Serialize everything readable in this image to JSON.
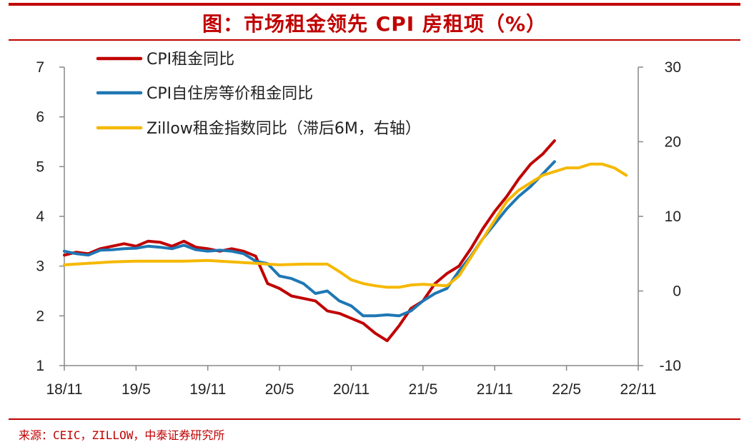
{
  "header": {
    "title": "图：市场租金领先 CPI 房租项（%）"
  },
  "footer": {
    "source": "来源：CEIC，ZILLOW，中泰证券研究所"
  },
  "chart_data": {
    "type": "line",
    "title": "图：市场租金领先 CPI 房租项（%）",
    "legend_position": "top-left",
    "grid": false,
    "x_ticks": [
      "18/11",
      "19/5",
      "19/11",
      "20/5",
      "20/11",
      "21/5",
      "21/11",
      "22/5",
      "22/11"
    ],
    "x_range": [
      0,
      48
    ],
    "left_axis": {
      "ticks": [
        "1",
        "2",
        "3",
        "4",
        "5",
        "6",
        "7"
      ],
      "ylim": [
        1,
        7
      ]
    },
    "right_axis": {
      "ticks": [
        "-10",
        "0",
        "10",
        "20",
        "30"
      ],
      "ylim": [
        -10,
        30
      ]
    },
    "series": [
      {
        "name": "CPI租金同比",
        "axis": "left",
        "color": "#c00000",
        "x": [
          0,
          1,
          2,
          3,
          4,
          5,
          6,
          7,
          8,
          9,
          10,
          11,
          12,
          13,
          14,
          15,
          16,
          17,
          18,
          19,
          20,
          21,
          22,
          23,
          24,
          25,
          26,
          27,
          28,
          29,
          30,
          31,
          32,
          33,
          34,
          35,
          36,
          37,
          38,
          39,
          40,
          41
        ],
        "values": [
          3.22,
          3.28,
          3.25,
          3.35,
          3.4,
          3.45,
          3.4,
          3.5,
          3.48,
          3.4,
          3.5,
          3.38,
          3.35,
          3.3,
          3.35,
          3.3,
          3.2,
          2.65,
          2.55,
          2.4,
          2.35,
          2.3,
          2.1,
          2.05,
          1.95,
          1.85,
          1.65,
          1.5,
          1.8,
          2.15,
          2.3,
          2.65,
          2.85,
          3.0,
          3.35,
          3.75,
          4.1,
          4.4,
          4.75,
          5.05,
          5.25,
          5.52
        ]
      },
      {
        "name": "CPI自住房等价租金同比",
        "axis": "left",
        "color": "#1f77b4",
        "x": [
          0,
          1,
          2,
          3,
          4,
          5,
          6,
          7,
          8,
          9,
          10,
          11,
          12,
          13,
          14,
          15,
          16,
          17,
          18,
          19,
          20,
          21,
          22,
          23,
          24,
          25,
          26,
          27,
          28,
          29,
          30,
          31,
          32,
          33,
          34,
          35,
          36,
          37,
          38,
          39,
          40,
          41
        ],
        "values": [
          3.3,
          3.25,
          3.22,
          3.32,
          3.33,
          3.35,
          3.36,
          3.4,
          3.38,
          3.35,
          3.42,
          3.33,
          3.3,
          3.32,
          3.3,
          3.25,
          3.1,
          3.05,
          2.8,
          2.75,
          2.65,
          2.45,
          2.5,
          2.3,
          2.2,
          2.0,
          2.0,
          2.02,
          2.0,
          2.1,
          2.3,
          2.45,
          2.55,
          2.9,
          3.2,
          3.55,
          3.85,
          4.15,
          4.4,
          4.6,
          4.85,
          5.1
        ]
      },
      {
        "name": "Zillow租金指数同比（滞后6M，右轴）",
        "axis": "right",
        "color": "#f5b800",
        "x": [
          0,
          2,
          4,
          6,
          8,
          10,
          12,
          14,
          16,
          18,
          20,
          22,
          23,
          24,
          25,
          26,
          27,
          28,
          29,
          30,
          31,
          32,
          33,
          34,
          35,
          36,
          37,
          38,
          39,
          40,
          41,
          42,
          43,
          44,
          45,
          46,
          47
        ],
        "values": [
          3.5,
          3.7,
          3.9,
          4.0,
          4.0,
          4.0,
          4.1,
          3.9,
          3.7,
          3.5,
          3.6,
          3.6,
          2.6,
          1.5,
          1.0,
          0.7,
          0.5,
          0.5,
          0.8,
          0.9,
          0.8,
          0.7,
          2.0,
          4.5,
          7.0,
          9.5,
          12.0,
          13.5,
          14.5,
          15.5,
          16.0,
          16.5,
          16.5,
          17.0,
          17.0,
          16.5,
          15.5
        ]
      }
    ]
  }
}
